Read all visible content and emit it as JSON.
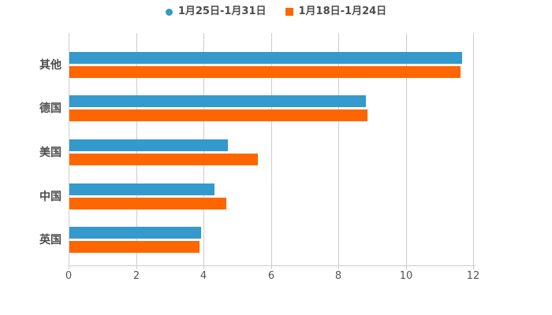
{
  "chart_data": {
    "type": "bar",
    "orientation": "horizontal",
    "title": "",
    "categories": [
      "其他",
      "德国",
      "美国",
      "中国",
      "英国"
    ],
    "series": [
      {
        "name": "1月25日-1月31日",
        "color": "#3499CC",
        "legend_marker": "circle",
        "values": [
          11.65,
          8.8,
          4.7,
          4.3,
          3.9
        ]
      },
      {
        "name": "1月18日-1月24日",
        "color": "#FF6600",
        "legend_marker": "square",
        "values": [
          11.6,
          8.85,
          5.6,
          4.65,
          3.85
        ]
      }
    ],
    "xlabel": "",
    "ylabel": "",
    "x_ticks": [
      0,
      2,
      4,
      6,
      8,
      10,
      12
    ],
    "xlim": [
      0,
      12.05
    ],
    "grid": true,
    "legend_position": "top",
    "colors": {
      "axis_line": "#CCCCCC",
      "gridline": "#CCCCCC",
      "tick_label": "#555555",
      "category_label": "#4D4D4D",
      "background": "#FFFFFF"
    }
  }
}
